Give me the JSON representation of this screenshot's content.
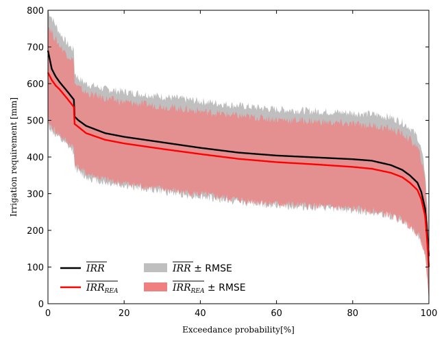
{
  "chart_data": {
    "type": "line",
    "xlabel": "Exceedance probability[%]",
    "ylabel": "Irrigation requirement [mm]",
    "xlim": [
      0,
      100
    ],
    "ylim": [
      0,
      800
    ],
    "xticks": [
      0,
      20,
      40,
      60,
      80,
      100
    ],
    "yticks": [
      0,
      100,
      200,
      300,
      400,
      500,
      600,
      700,
      800
    ],
    "grid": false,
    "legend_position": "bottom-left",
    "x": [
      0,
      1,
      2,
      3,
      5,
      6.9,
      7,
      8,
      10,
      15,
      20,
      30,
      40,
      50,
      60,
      70,
      80,
      85,
      90,
      93,
      95,
      97,
      98,
      99,
      99.5,
      100
    ],
    "series": [
      {
        "name": "IRR",
        "kind": "line",
        "color": "#000000",
        "values": [
          690,
          640,
          620,
          605,
          580,
          555,
          510,
          500,
          485,
          465,
          455,
          440,
          425,
          412,
          404,
          399,
          394,
          390,
          378,
          365,
          350,
          330,
          305,
          260,
          200,
          130
        ]
      },
      {
        "name": "IRR_REA",
        "kind": "line",
        "color": "#ff0000",
        "values": [
          630,
          610,
          595,
          585,
          560,
          535,
          490,
          482,
          465,
          447,
          437,
          422,
          408,
          395,
          386,
          380,
          373,
          368,
          357,
          345,
          330,
          310,
          285,
          240,
          180,
          100
        ]
      },
      {
        "name": "IRR ± RMSE",
        "kind": "band",
        "color": "#bfbfbf",
        "upper": [
          800,
          780,
          760,
          740,
          710,
          690,
          630,
          615,
          600,
          585,
          578,
          565,
          552,
          540,
          530,
          525,
          520,
          517,
          508,
          495,
          480,
          455,
          420,
          360,
          280,
          180
        ],
        "lower": [
          490,
          470,
          460,
          450,
          430,
          415,
          375,
          360,
          345,
          330,
          322,
          307,
          292,
          278,
          268,
          262,
          255,
          250,
          238,
          225,
          210,
          190,
          170,
          130,
          80,
          20
        ]
      },
      {
        "name": "IRR_REA ± RMSE",
        "kind": "band",
        "color": "#f08080",
        "upper": [
          760,
          740,
          720,
          705,
          680,
          660,
          600,
          590,
          575,
          560,
          550,
          538,
          525,
          512,
          503,
          497,
          490,
          486,
          476,
          463,
          448,
          425,
          395,
          335,
          255,
          150
        ],
        "lower": [
          500,
          480,
          470,
          460,
          440,
          425,
          385,
          370,
          355,
          338,
          328,
          312,
          298,
          283,
          272,
          266,
          258,
          253,
          240,
          228,
          212,
          192,
          172,
          130,
          80,
          10
        ]
      }
    ],
    "legend": [
      {
        "base": "IRR",
        "sub": "",
        "suffix": "",
        "kind": "line",
        "color": "#000000"
      },
      {
        "base": "IRR",
        "sub": "REA",
        "suffix": "",
        "kind": "line",
        "color": "#ff0000"
      },
      {
        "base": "IRR",
        "sub": "",
        "suffix": "± RMSE",
        "kind": "band",
        "color": "#bfbfbf"
      },
      {
        "base": "IRR",
        "sub": "REA",
        "suffix": "± RMSE",
        "kind": "band",
        "color": "#f08080"
      }
    ]
  }
}
